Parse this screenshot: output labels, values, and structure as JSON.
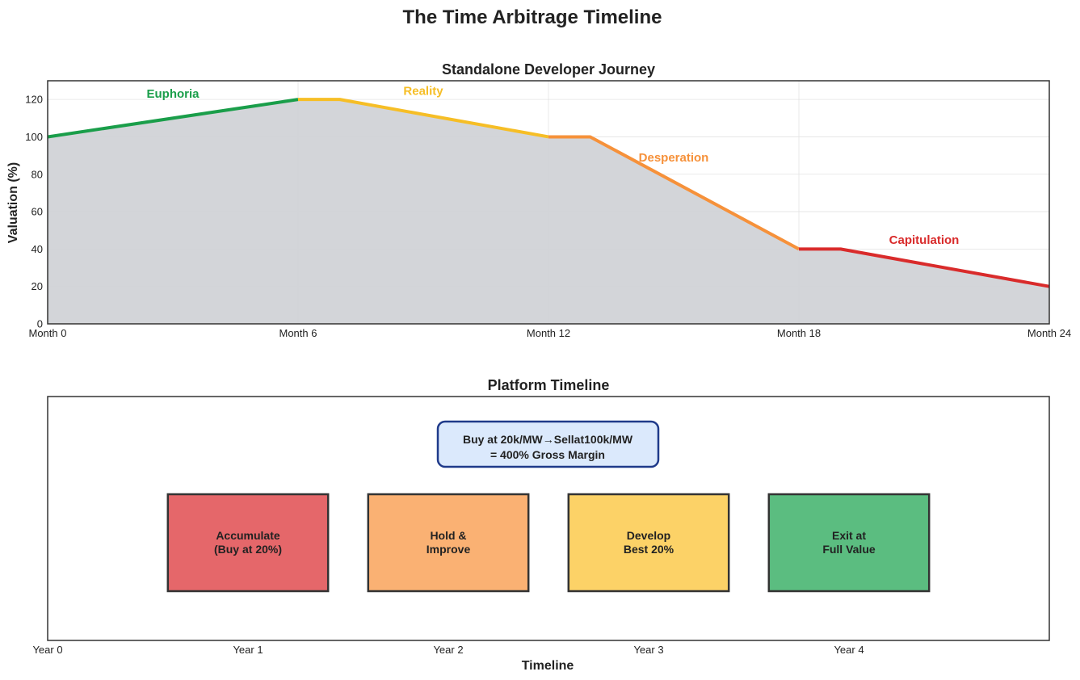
{
  "figure": {
    "title": "The Time Arbitrage Timeline"
  },
  "chart_data": [
    {
      "type": "area",
      "title": "Standalone Developer Journey",
      "xlabel": "",
      "ylabel": "Valuation (%)",
      "x_tick_labels": [
        "Month 0",
        "Month 6",
        "Month 12",
        "Month 18",
        "Month 24"
      ],
      "x_ticks": [
        0,
        6,
        12,
        18,
        24
      ],
      "xlim": [
        0,
        24
      ],
      "y_ticks": [
        0,
        20,
        40,
        60,
        80,
        100,
        120
      ],
      "ylim": [
        0,
        130
      ],
      "grid": true,
      "fill_color": "#d1d3d7",
      "series": [
        {
          "name": "Euphoria",
          "color": "#1a9e4a",
          "x": [
            0,
            6
          ],
          "y": [
            100,
            120
          ]
        },
        {
          "name": "Reality",
          "color": "#f6be26",
          "x": [
            6,
            7,
            12
          ],
          "y": [
            120,
            120,
            100
          ]
        },
        {
          "name": "Desperation",
          "color": "#f6913a",
          "x": [
            12,
            13,
            18
          ],
          "y": [
            100,
            100,
            40
          ]
        },
        {
          "name": "Capitulation",
          "color": "#d92b2b",
          "x": [
            18,
            19,
            24
          ],
          "y": [
            40,
            40,
            20
          ]
        }
      ],
      "annotations": [
        {
          "text": "Euphoria",
          "x": 3,
          "y": 123,
          "color": "#1a9e4a"
        },
        {
          "text": "Reality",
          "x": 9,
          "y": 124.5,
          "color": "#f6be26"
        },
        {
          "text": "Desperation",
          "x": 15,
          "y": 89,
          "color": "#f6913a"
        },
        {
          "text": "Capitulation",
          "x": 21,
          "y": 45,
          "color": "#d92b2b"
        }
      ]
    },
    {
      "type": "timeline",
      "title": "Platform Timeline",
      "xlabel": "Timeline",
      "x_tick_labels": [
        "Year 0",
        "Year 1",
        "Year 2",
        "Year 3",
        "Year 4"
      ],
      "x_ticks": [
        0,
        1,
        2,
        3,
        4
      ],
      "xlim": [
        0,
        5
      ],
      "callout": {
        "line1": "Buy at 20k/MW→Sellat100k/MW",
        "line2": "= 400% Gross Margin",
        "fill": "#dbe9fc",
        "border": "#1f3a8a"
      },
      "stages": [
        {
          "line1": "Accumulate",
          "line2": "(Buy at 20%)",
          "center_year": 1,
          "color": "#e5676a"
        },
        {
          "line1": "Hold &",
          "line2": "Improve",
          "center_year": 2,
          "color": "#fab173"
        },
        {
          "line1": "Develop",
          "line2": "Best 20%",
          "center_year": 3,
          "color": "#fcd267"
        },
        {
          "line1": "Exit at",
          "line2": "Full Value",
          "center_year": 4,
          "color": "#5bbd80"
        }
      ]
    }
  ]
}
